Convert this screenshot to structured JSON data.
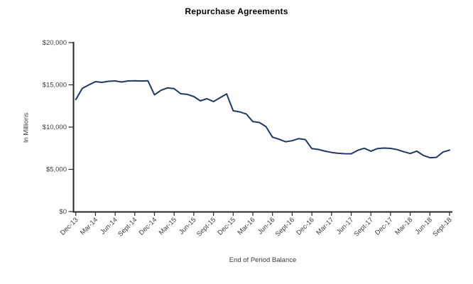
{
  "chart_data": {
    "type": "line",
    "title": "Repurchase Agreements",
    "xlabel": "End of Period Balance",
    "ylabel": "In Millions",
    "ylim": [
      0,
      20000
    ],
    "y_ticks": [
      0,
      5000,
      10000,
      15000,
      20000
    ],
    "y_tick_labels": [
      "$0",
      "$5,000",
      "$10,000",
      "$15,000",
      "$20,000"
    ],
    "x_tick_labels": [
      "Dec-13",
      "Mar-14",
      "Jun-14",
      "Sept-14",
      "Dec-14",
      "Mar-15",
      "Jun-15",
      "Sept-15",
      "Dec-15",
      "Mar-16",
      "Jun-16",
      "Sept-16",
      "Dec-16",
      "Mar-17",
      "Jun-17",
      "Sept-17",
      "Dec-17",
      "Mar-18",
      "Jun-18",
      "Sept-18"
    ],
    "grid": false,
    "legend": "none",
    "series_color": "#203864",
    "axis_color": "#262626",
    "label_color": "#3d3d3d",
    "series": [
      {
        "name": "End of Period Balance",
        "x": [
          "Dec-13",
          "Jan-14",
          "Feb-14",
          "Mar-14",
          "Apr-14",
          "May-14",
          "Jun-14",
          "Jul-14",
          "Aug-14",
          "Sept-14",
          "Oct-14",
          "Nov-14",
          "Dec-14",
          "Jan-15",
          "Feb-15",
          "Mar-15",
          "Apr-15",
          "May-15",
          "Jun-15",
          "Jul-15",
          "Aug-15",
          "Sept-15",
          "Oct-15",
          "Nov-15",
          "Dec-15",
          "Jan-16",
          "Feb-16",
          "Mar-16",
          "Apr-16",
          "May-16",
          "Jun-16",
          "Jul-16",
          "Aug-16",
          "Sept-16",
          "Oct-16",
          "Nov-16",
          "Dec-16",
          "Jan-17",
          "Feb-17",
          "Mar-17",
          "Apr-17",
          "May-17",
          "Jun-17",
          "Jul-17",
          "Aug-17",
          "Sept-17",
          "Oct-17",
          "Nov-17",
          "Dec-17",
          "Jan-18",
          "Feb-18",
          "Mar-18",
          "Apr-18",
          "May-18",
          "Jun-18",
          "Jul-18",
          "Aug-18",
          "Sept-18"
        ],
        "values": [
          13250,
          14580,
          15000,
          15380,
          15290,
          15420,
          15460,
          15340,
          15460,
          15490,
          15450,
          15480,
          13820,
          14350,
          14650,
          14550,
          13950,
          13870,
          13610,
          13110,
          13360,
          13020,
          13480,
          13930,
          11930,
          11800,
          11550,
          10650,
          10550,
          10050,
          8810,
          8560,
          8260,
          8390,
          8640,
          8520,
          7450,
          7350,
          7150,
          7000,
          6900,
          6850,
          6840,
          7250,
          7500,
          7150,
          7450,
          7520,
          7480,
          7340,
          7080,
          6870,
          7150,
          6650,
          6380,
          6420,
          7050,
          7280
        ]
      }
    ]
  }
}
